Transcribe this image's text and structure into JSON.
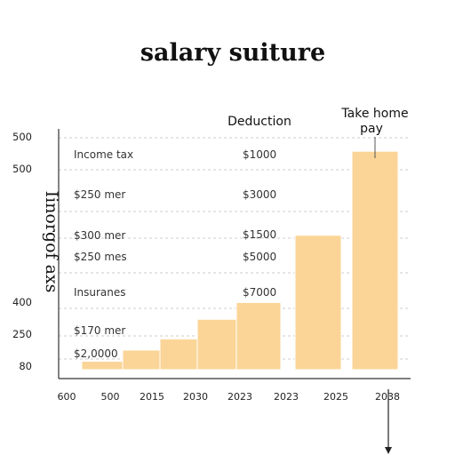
{
  "chart_data": {
    "type": "bar",
    "title": "salary suiture",
    "ylabel": "Iinorgof  axs",
    "y_tick_labels": [
      "500",
      "500",
      "400",
      "250",
      "80"
    ],
    "x_tick_labels": [
      "600",
      "500",
      "2015",
      "2030",
      "2023",
      "2023",
      "2025",
      "2038"
    ],
    "values": [
      1.5,
      3.5,
      5.5,
      9.0,
      12.0,
      24.0,
      39.0
    ],
    "ylim": [
      0,
      43
    ],
    "bar_color": "#fbd597",
    "grid": true,
    "annotations": {
      "deduction": "Deduction",
      "take_home_1": "Take home",
      "take_home_2": "pay",
      "left_labels": [
        "Income tax",
        "$250 mer",
        "$300 mer",
        "$250 mes",
        "Insuranes",
        "$170 mer",
        "$2,0000"
      ],
      "right_labels": [
        "$1000",
        "$3000",
        "$1500",
        "$5000",
        "$7000"
      ]
    }
  }
}
